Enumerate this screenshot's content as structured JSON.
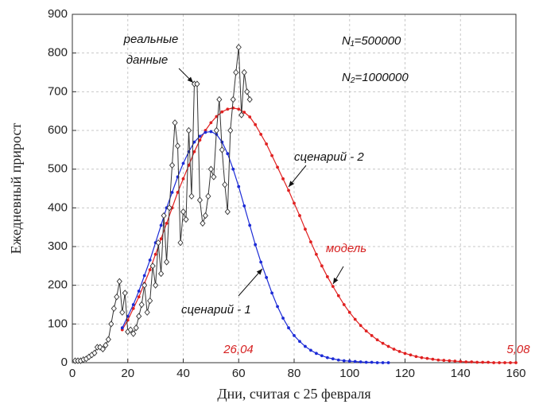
{
  "chart_data": {
    "type": "line",
    "xlabel": "Дни, считая с 25 февраля",
    "ylabel": "Ежедневный прирост",
    "xlim": [
      0,
      160
    ],
    "ylim": [
      0,
      900
    ],
    "xticks": [
      0,
      20,
      40,
      60,
      80,
      100,
      120,
      140,
      160
    ],
    "yticks": [
      0,
      100,
      200,
      300,
      400,
      500,
      600,
      700,
      800,
      900
    ],
    "grid": true,
    "series": [
      {
        "color": "#e02020",
        "marker": "dot",
        "x": [
          18,
          20,
          22,
          24,
          26,
          28,
          30,
          32,
          34,
          36,
          38,
          40,
          42,
          44,
          46,
          48,
          50,
          52,
          54,
          56,
          58,
          60,
          62,
          64,
          66,
          68,
          70,
          72,
          74,
          76,
          78,
          80,
          82,
          84,
          86,
          88,
          90,
          92,
          94,
          96,
          98,
          100,
          102,
          104,
          106,
          108,
          110,
          112,
          114,
          116,
          118,
          120,
          122,
          124,
          126,
          128,
          130,
          132,
          134,
          136,
          138,
          140,
          142,
          144,
          146,
          148,
          150,
          152,
          154,
          156,
          158,
          160
        ],
        "values": [
          85,
          110,
          140,
          170,
          205,
          240,
          280,
          320,
          360,
          400,
          440,
          475,
          510,
          545,
          575,
          600,
          620,
          636,
          648,
          655,
          658,
          655,
          647,
          635,
          615,
          590,
          565,
          535,
          505,
          475,
          445,
          412,
          380,
          345,
          312,
          280,
          250,
          222,
          197,
          173,
          150,
          130,
          112,
          96,
          82,
          70,
          59,
          50,
          42,
          35,
          29,
          24,
          20,
          16,
          13,
          11,
          9,
          7,
          6,
          5,
          4,
          3,
          2,
          2,
          1,
          1,
          1,
          0,
          0,
          0,
          0,
          0
        ]
      },
      {
        "color": "#1c2bd6",
        "marker": "dot",
        "x": [
          18,
          20,
          22,
          24,
          26,
          28,
          30,
          32,
          34,
          36,
          38,
          40,
          42,
          44,
          46,
          48,
          50,
          52,
          54,
          56,
          58,
          60,
          62,
          64,
          66,
          68,
          70,
          72,
          74,
          76,
          78,
          80,
          82,
          84,
          86,
          88,
          90,
          92,
          94,
          96,
          98,
          100,
          102,
          104,
          106,
          108,
          110,
          112,
          114
        ],
        "values": [
          90,
          120,
          150,
          185,
          225,
          265,
          310,
          355,
          400,
          440,
          480,
          515,
          545,
          570,
          585,
          595,
          597,
          590,
          570,
          540,
          500,
          455,
          405,
          355,
          305,
          260,
          220,
          180,
          145,
          115,
          90,
          70,
          55,
          42,
          32,
          24,
          18,
          13,
          10,
          7,
          5,
          4,
          3,
          2,
          1,
          1,
          0,
          0,
          0
        ]
      },
      {
        "color": "#333333",
        "marker": "diamond",
        "x": [
          1,
          2,
          3,
          4,
          5,
          6,
          7,
          8,
          9,
          10,
          11,
          12,
          13,
          14,
          15,
          16,
          17,
          18,
          19,
          20,
          21,
          22,
          23,
          24,
          25,
          26,
          27,
          28,
          29,
          30,
          31,
          32,
          33,
          34,
          35,
          36,
          37,
          38,
          39,
          40,
          41,
          42,
          43,
          44,
          45,
          46,
          47,
          48,
          49,
          50,
          51,
          52,
          53,
          54,
          55,
          56,
          57,
          58,
          59,
          60,
          61,
          62,
          63,
          64
        ],
        "values": [
          5,
          5,
          5,
          8,
          10,
          15,
          20,
          25,
          40,
          40,
          35,
          45,
          60,
          100,
          140,
          170,
          210,
          130,
          180,
          80,
          85,
          75,
          90,
          120,
          150,
          200,
          130,
          160,
          250,
          200,
          310,
          230,
          380,
          260,
          400,
          510,
          620,
          560,
          310,
          390,
          370,
          600,
          430,
          720,
          720,
          420,
          360,
          380,
          430,
          500,
          480,
          600,
          680,
          550,
          460,
          390,
          600,
          680,
          750,
          815,
          640,
          750,
          700,
          680
        ]
      }
    ],
    "annotations": [
      {
        "text": "реальные",
        "color": "#111111"
      },
      {
        "text": "данные",
        "color": "#111111"
      },
      {
        "text": "N₁=500000",
        "color": "#111111"
      },
      {
        "text": "N₂=1000000",
        "color": "#111111"
      },
      {
        "text": "сценарий - 2",
        "color": "#111111"
      },
      {
        "text": "модель",
        "color": "#d62020"
      },
      {
        "text": "сценарий - 1",
        "color": "#111111"
      },
      {
        "text": "26,04",
        "color": "#d62020"
      },
      {
        "text": "5,08",
        "color": "#d62020"
      }
    ]
  }
}
